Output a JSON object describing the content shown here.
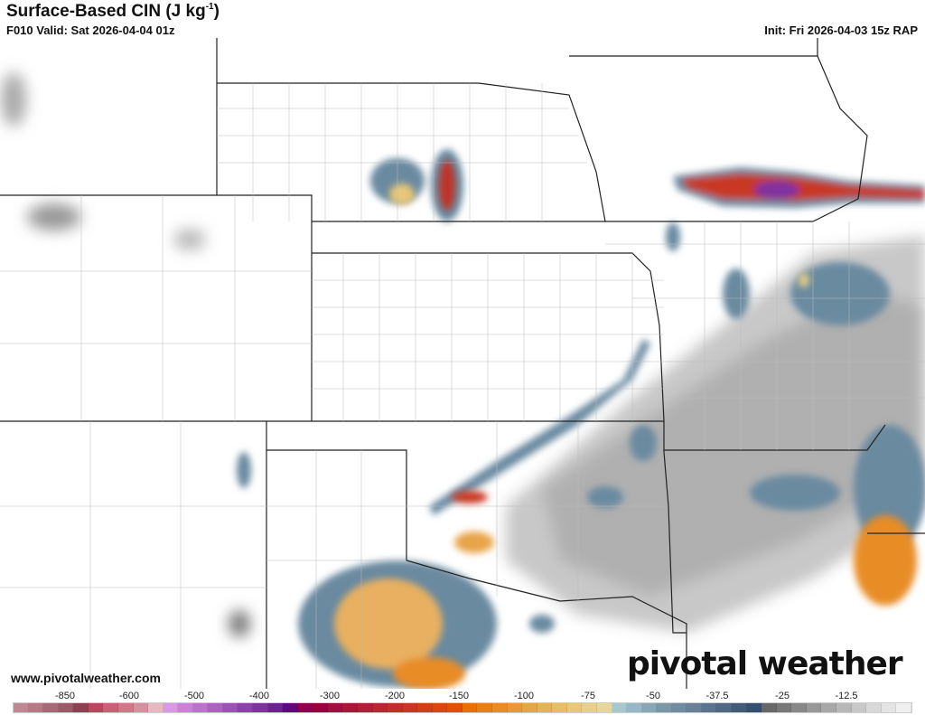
{
  "header": {
    "title": "Surface-Based CIN (J kg",
    "title_sup": "-1",
    "title_close": ")",
    "valid": "F010 Valid: Sat 2026-04-04 01z",
    "init": "Init: Fri 2026-04-03 15z RAP"
  },
  "footer": {
    "url": "www.pivotalweather.com",
    "logo_text": "pivotal weather"
  },
  "colorbar": {
    "labels": [
      "-850",
      "-600",
      "-500",
      "-400",
      "-300",
      "-200",
      "-150",
      "-100",
      "-75",
      "-50",
      "-37.5",
      "-25",
      "-12.5"
    ],
    "groups": [
      {
        "range": "< -400",
        "colors": [
          "#c08890",
          "#b87884",
          "#ac6878",
          "#a05868",
          "#904050",
          "#b84860",
          "#c86078",
          "#d07888",
          "#d890a0",
          "#e8b8c0"
        ]
      },
      {
        "range": "-400 to -200",
        "colors": [
          "#d898e8",
          "#cc80dc",
          "#c070d0",
          "#b060c4",
          "#a050b8",
          "#9040ac",
          "#8030a0",
          "#702090",
          "#600880",
          "#900050"
        ]
      },
      {
        "range": "-200 to -100",
        "colors": [
          "#980040",
          "#a01040",
          "#a81838",
          "#b02038",
          "#b82830",
          "#c03028",
          "#c83820",
          "#d04018",
          "#d84810",
          "#e05008"
        ]
      },
      {
        "range": "-100 to -50",
        "colors": [
          "#e87008",
          "#e88018",
          "#e88c28",
          "#e89838",
          "#e8a448",
          "#e8b058",
          "#e8bc68",
          "#e8c878",
          "#e8d088",
          "#e8d898"
        ]
      },
      {
        "range": "-50 to -25",
        "colors": [
          "#a8c8d0",
          "#98b8c8",
          "#88a8b8",
          "#7898a8",
          "#708ca0",
          "#688098",
          "#587490",
          "#506888",
          "#405c78",
          "#345070"
        ]
      },
      {
        "range": "-25 to 0",
        "colors": [
          "#686868",
          "#787878",
          "#888888",
          "#989898",
          "#a8a8a8",
          "#b8b8b8",
          "#c8c8c8",
          "#d8d8d8",
          "#e4e4e4",
          "#f0f0f0"
        ]
      }
    ]
  }
}
